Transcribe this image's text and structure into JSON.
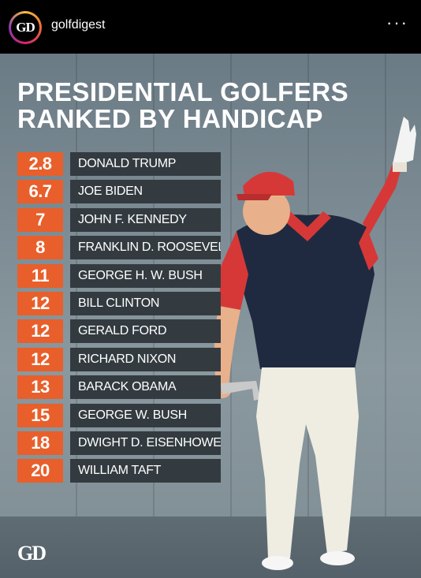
{
  "header": {
    "avatar_text": "GD",
    "account_name": "golfdigest",
    "more_label": "···"
  },
  "poster": {
    "title_line1": "PRESIDENTIAL GOLFERS",
    "title_line2": "RANKED BY HANDICAP",
    "logo_text": "GD",
    "rankings": [
      {
        "handicap": "2.8",
        "name": "DONALD TRUMP"
      },
      {
        "handicap": "6.7",
        "name": "JOE BIDEN"
      },
      {
        "handicap": "7",
        "name": "JOHN F. KENNEDY"
      },
      {
        "handicap": "8",
        "name": "FRANKLIN D. ROOSEVELT"
      },
      {
        "handicap": "11",
        "name": "GEORGE H. W. BUSH"
      },
      {
        "handicap": "12",
        "name": "BILL CLINTON"
      },
      {
        "handicap": "12",
        "name": "GERALD FORD"
      },
      {
        "handicap": "12",
        "name": "RICHARD NIXON"
      },
      {
        "handicap": "13",
        "name": "BARACK OBAMA"
      },
      {
        "handicap": "15",
        "name": "GEORGE W. BUSH"
      },
      {
        "handicap": "18",
        "name": "DWIGHT D. EISENHOWER"
      },
      {
        "handicap": "20",
        "name": "WILLIAM TAFT"
      }
    ]
  },
  "colors": {
    "accent": "#e85f2b",
    "name_bg": "#333b40",
    "wall": "#7e8d95"
  }
}
